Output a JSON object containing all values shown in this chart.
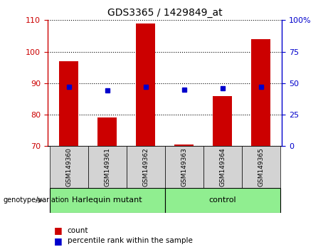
{
  "title": "GDS3365 / 1429849_at",
  "samples": [
    "GSM149360",
    "GSM149361",
    "GSM149362",
    "GSM149363",
    "GSM149364",
    "GSM149365"
  ],
  "counts": [
    97,
    79,
    109,
    70.5,
    86,
    104
  ],
  "percentile_ranks": [
    47,
    44,
    47,
    45,
    46,
    47
  ],
  "ylim_left": [
    70,
    110
  ],
  "ylim_right": [
    0,
    100
  ],
  "yticks_left": [
    70,
    80,
    90,
    100,
    110
  ],
  "yticks_right": [
    0,
    25,
    50,
    75,
    100
  ],
  "bar_color": "#cc0000",
  "dot_color": "#0000cc",
  "group1_label": "Harlequin mutant",
  "group2_label": "control",
  "group1_indices": [
    0,
    1,
    2
  ],
  "group2_indices": [
    3,
    4,
    5
  ],
  "group_bg_color": "#90ee90",
  "sample_bg_color": "#d3d3d3",
  "legend_count_label": "count",
  "legend_pct_label": "percentile rank within the sample",
  "genotype_label": "genotype/variation",
  "left_axis_color": "#cc0000",
  "right_axis_color": "#0000cc",
  "bar_width": 0.5
}
